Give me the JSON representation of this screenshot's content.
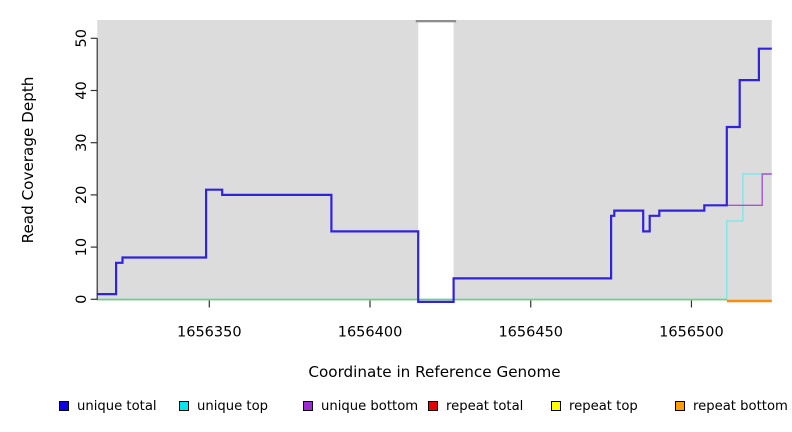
{
  "chart_data": {
    "type": "line",
    "subtype": "step-coverage",
    "xlabel": "Coordinate in Reference Genome",
    "ylabel": "Read Coverage Depth",
    "xlim": [
      1656315,
      1656525
    ],
    "ylim": [
      0,
      52
    ],
    "x_ticks": [
      1656350,
      1656400,
      1656450,
      1656500
    ],
    "y_ticks": [
      0,
      10,
      20,
      30,
      40,
      50
    ],
    "grid": false,
    "legend_position": "bottom",
    "plot_bg": "#DCDCDC",
    "axis_color": "#333333",
    "gap_region": {
      "x0": 1656415,
      "x1": 1656426,
      "color": "#FFFFFF",
      "top_bar_color": "#8E8E8E",
      "note": "zero-coverage gap shown as white band"
    },
    "baseline": {
      "name": "zero-baseline",
      "color": "#7DC97D",
      "x0": 1656315,
      "x1": 1656511,
      "value": 0
    },
    "series": [
      {
        "name": "unique total",
        "color": "#3023DC",
        "width": 2.2,
        "style": "step",
        "end_x": 1656525,
        "points": [
          [
            1656315,
            1
          ],
          [
            1656321,
            7
          ],
          [
            1656323,
            8
          ],
          [
            1656349,
            21
          ],
          [
            1656354,
            20
          ],
          [
            1656388,
            13
          ],
          [
            1656415,
            0
          ],
          [
            1656426,
            4
          ],
          [
            1656475,
            16
          ],
          [
            1656476,
            17
          ],
          [
            1656485,
            13
          ],
          [
            1656487,
            16
          ],
          [
            1656490,
            17
          ],
          [
            1656504,
            18
          ],
          [
            1656511,
            33
          ],
          [
            1656515,
            42
          ],
          [
            1656521,
            48
          ]
        ]
      },
      {
        "name": "unique bottom",
        "color": "#A355DA",
        "width": 1.4,
        "style": "step",
        "end_x": 1656525,
        "points": [
          [
            1656315,
            1
          ],
          [
            1656321,
            7
          ],
          [
            1656323,
            8
          ],
          [
            1656349,
            21
          ],
          [
            1656354,
            20
          ],
          [
            1656388,
            13
          ],
          [
            1656415,
            0
          ],
          [
            1656426,
            4
          ],
          [
            1656475,
            16
          ],
          [
            1656476,
            17
          ],
          [
            1656485,
            13
          ],
          [
            1656487,
            16
          ],
          [
            1656490,
            17
          ],
          [
            1656504,
            18
          ],
          [
            1656522,
            24
          ]
        ]
      },
      {
        "name": "unique top",
        "color": "#7FE6EA",
        "width": 1.4,
        "style": "step",
        "end_x": 1656525,
        "points": [
          [
            1656315,
            0
          ],
          [
            1656511,
            15
          ],
          [
            1656516,
            24
          ]
        ]
      },
      {
        "name": "repeat bottom",
        "color": "#FF8C00",
        "width": 2.6,
        "style": "step",
        "end_x": 1656525,
        "points": [
          [
            1656511,
            0
          ]
        ]
      }
    ]
  },
  "legend": {
    "items": [
      {
        "label": "unique total",
        "color": "#0B00E6"
      },
      {
        "label": "unique top",
        "color": "#00E5EE"
      },
      {
        "label": "unique bottom",
        "color": "#9C2BD2"
      },
      {
        "label": "repeat total",
        "color": "#E60000"
      },
      {
        "label": "repeat top",
        "color": "#FFFF00"
      },
      {
        "label": "repeat bottom",
        "color": "#FF9D00"
      }
    ]
  }
}
